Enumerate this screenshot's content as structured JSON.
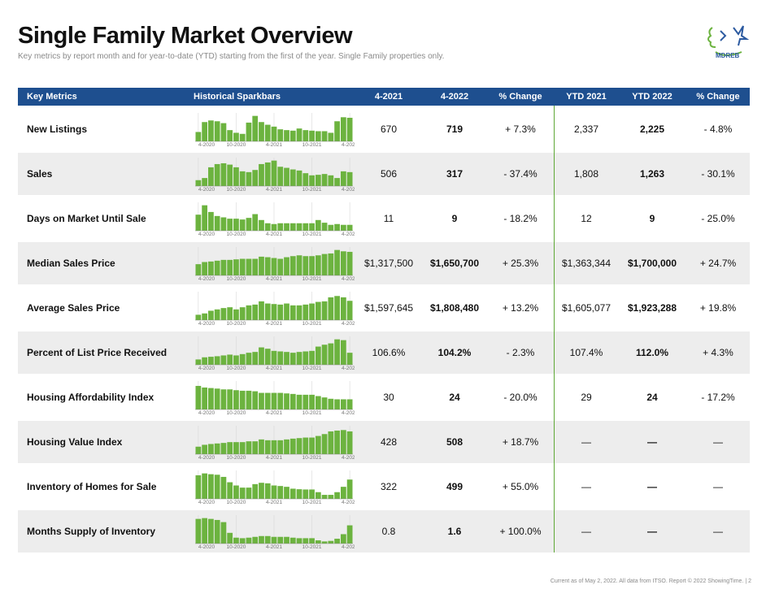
{
  "title": "Single Family Market Overview",
  "subtitle": "Key metrics by report month and for year-to-date (YTD) starting from the first of the year. Single Family properties only.",
  "logo": {
    "text": "MDREB"
  },
  "headers": {
    "metric": "Key Metrics",
    "spark": "Historical Sparkbars",
    "m1": "4-2021",
    "m2": "4-2022",
    "pct1": "% Change",
    "y1": "YTD 2021",
    "y2": "YTD 2022",
    "pct2": "% Change"
  },
  "axis_labels": [
    "4-2020",
    "10-2020",
    "4-2021",
    "10-2021",
    "4-2022"
  ],
  "colors": {
    "header": "#1e4f8f",
    "bar": "#6cb33f",
    "divider": "#5ea836"
  },
  "rows": [
    {
      "label": "New Listings",
      "m1": "670",
      "m2": "719",
      "pct1": "+ 7.3%",
      "y1": "2,337",
      "y2": "2,225",
      "pct2": "- 4.8%",
      "bars": [
        0.35,
        0.72,
        0.78,
        0.75,
        0.68,
        0.42,
        0.32,
        0.28,
        0.7,
        0.95,
        0.72,
        0.62,
        0.55,
        0.45,
        0.42,
        0.4,
        0.48,
        0.42,
        0.4,
        0.38,
        0.38,
        0.32,
        0.75,
        0.9,
        0.88
      ]
    },
    {
      "label": "Sales",
      "m1": "506",
      "m2": "317",
      "pct1": "- 37.4%",
      "y1": "1,808",
      "y2": "1,263",
      "pct2": "- 30.1%",
      "bars": [
        0.22,
        0.3,
        0.7,
        0.82,
        0.85,
        0.8,
        0.7,
        0.55,
        0.52,
        0.6,
        0.82,
        0.88,
        0.95,
        0.72,
        0.68,
        0.62,
        0.58,
        0.48,
        0.4,
        0.42,
        0.45,
        0.4,
        0.3,
        0.55,
        0.52
      ]
    },
    {
      "label": "Days on Market Until Sale",
      "m1": "11",
      "m2": "9",
      "pct1": "- 18.2%",
      "y1": "12",
      "y2": "9",
      "pct2": "- 25.0%",
      "bars": [
        0.6,
        0.95,
        0.7,
        0.55,
        0.5,
        0.45,
        0.45,
        0.42,
        0.48,
        0.62,
        0.4,
        0.28,
        0.25,
        0.28,
        0.28,
        0.28,
        0.28,
        0.28,
        0.28,
        0.4,
        0.3,
        0.22,
        0.25,
        0.22,
        0.22
      ]
    },
    {
      "label": "Median Sales Price",
      "m1": "$1,317,500",
      "m2": "$1,650,700",
      "pct1": "+ 25.3%",
      "y1": "$1,363,344",
      "y2": "$1,700,000",
      "pct2": "+ 24.7%",
      "bars": [
        0.42,
        0.5,
        0.52,
        0.55,
        0.58,
        0.58,
        0.6,
        0.62,
        0.62,
        0.62,
        0.7,
        0.68,
        0.65,
        0.62,
        0.68,
        0.72,
        0.75,
        0.72,
        0.72,
        0.75,
        0.8,
        0.82,
        0.95,
        0.9,
        0.88
      ]
    },
    {
      "label": "Average Sales Price",
      "m1": "$1,597,645",
      "m2": "$1,808,480",
      "pct1": "+ 13.2%",
      "y1": "$1,605,077",
      "y2": "$1,923,288",
      "pct2": "+ 19.8%",
      "bars": [
        0.2,
        0.25,
        0.35,
        0.4,
        0.45,
        0.48,
        0.4,
        0.48,
        0.55,
        0.58,
        0.7,
        0.62,
        0.6,
        0.58,
        0.62,
        0.55,
        0.55,
        0.58,
        0.62,
        0.68,
        0.7,
        0.85,
        0.9,
        0.85,
        0.72
      ]
    },
    {
      "label": "Percent of List Price Received",
      "m1": "106.6%",
      "m2": "104.2%",
      "pct1": "- 2.3%",
      "y1": "107.4%",
      "y2": "112.0%",
      "pct2": "+ 4.3%",
      "bars": [
        0.2,
        0.28,
        0.3,
        0.32,
        0.35,
        0.38,
        0.35,
        0.4,
        0.45,
        0.48,
        0.65,
        0.6,
        0.52,
        0.5,
        0.48,
        0.45,
        0.48,
        0.5,
        0.52,
        0.68,
        0.75,
        0.8,
        0.95,
        0.92,
        0.45
      ]
    },
    {
      "label": "Housing Affordability Index",
      "m1": "30",
      "m2": "24",
      "pct1": "- 20.0%",
      "y1": "29",
      "y2": "24",
      "pct2": "- 17.2%",
      "bars": [
        0.88,
        0.82,
        0.8,
        0.78,
        0.75,
        0.75,
        0.72,
        0.7,
        0.7,
        0.68,
        0.62,
        0.62,
        0.62,
        0.62,
        0.6,
        0.58,
        0.55,
        0.55,
        0.55,
        0.5,
        0.45,
        0.4,
        0.38,
        0.38,
        0.38
      ]
    },
    {
      "label": "Housing Value Index",
      "m1": "428",
      "m2": "508",
      "pct1": "+ 18.7%",
      "y1": "—",
      "y2": "—",
      "pct2": "—",
      "bars": [
        0.28,
        0.35,
        0.38,
        0.4,
        0.42,
        0.45,
        0.45,
        0.45,
        0.48,
        0.48,
        0.55,
        0.52,
        0.52,
        0.52,
        0.55,
        0.58,
        0.6,
        0.62,
        0.62,
        0.68,
        0.75,
        0.85,
        0.88,
        0.9,
        0.85
      ]
    },
    {
      "label": "Inventory of Homes for Sale",
      "m1": "322",
      "m2": "499",
      "pct1": "+ 55.0%",
      "y1": "—",
      "y2": "—",
      "pct2": "—",
      "bars": [
        0.88,
        0.95,
        0.92,
        0.9,
        0.82,
        0.62,
        0.5,
        0.42,
        0.42,
        0.55,
        0.6,
        0.58,
        0.5,
        0.48,
        0.45,
        0.38,
        0.36,
        0.35,
        0.35,
        0.25,
        0.15,
        0.15,
        0.25,
        0.45,
        0.72
      ]
    },
    {
      "label": "Months Supply of Inventory",
      "m1": "0.8",
      "m2": "1.6",
      "pct1": "+ 100.0%",
      "y1": "—",
      "y2": "—",
      "pct2": "—",
      "bars": [
        0.92,
        0.95,
        0.92,
        0.88,
        0.8,
        0.4,
        0.22,
        0.2,
        0.22,
        0.25,
        0.28,
        0.28,
        0.25,
        0.25,
        0.25,
        0.22,
        0.2,
        0.2,
        0.2,
        0.12,
        0.08,
        0.1,
        0.18,
        0.35,
        0.68
      ]
    }
  ],
  "footer": "Current as of May 2, 2022. All data from ITSO. Report © 2022 ShowingTime. | 2"
}
